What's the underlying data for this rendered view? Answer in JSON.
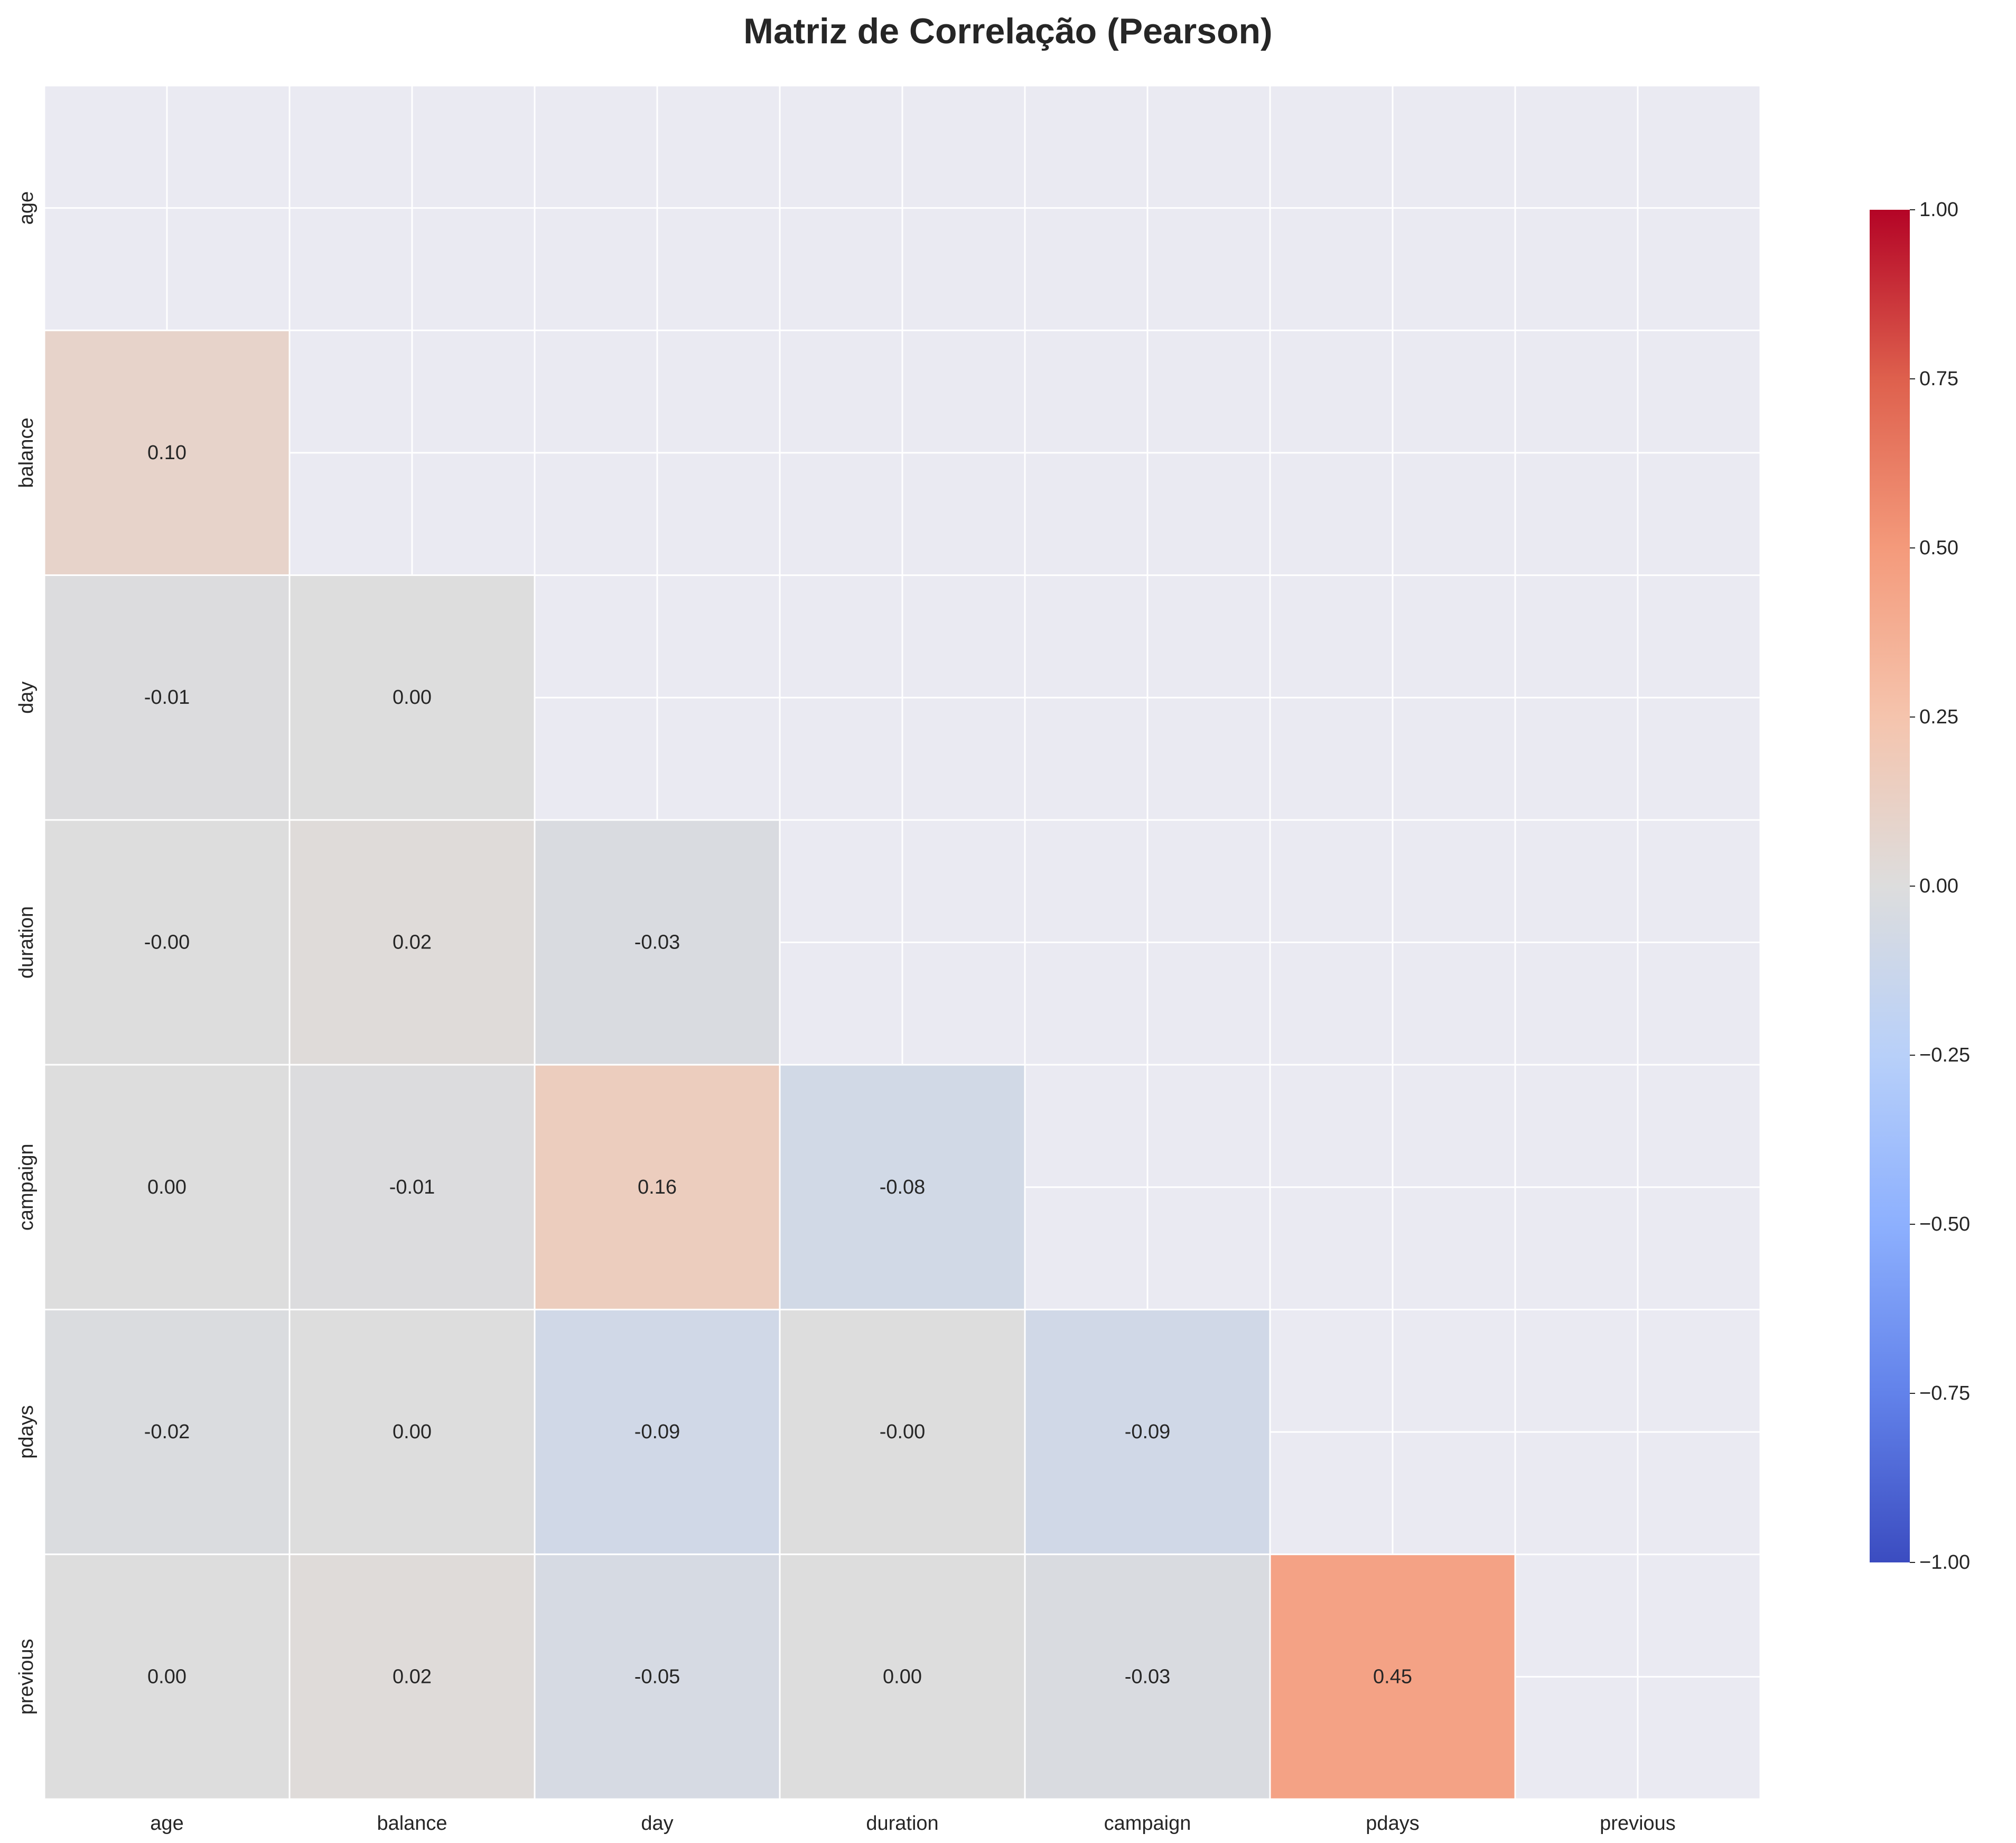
{
  "chart_data": {
    "type": "heatmap",
    "title": "Matriz de Correlação (Pearson)",
    "variables": [
      "age",
      "balance",
      "day",
      "duration",
      "campaign",
      "pdays",
      "previous"
    ],
    "masked": "upper triangle including diagonal",
    "matrix": [
      [
        null,
        null,
        null,
        null,
        null,
        null,
        null
      ],
      [
        0.1,
        null,
        null,
        null,
        null,
        null,
        null
      ],
      [
        -0.01,
        0.0,
        null,
        null,
        null,
        null,
        null
      ],
      [
        -0.0,
        0.02,
        -0.03,
        null,
        null,
        null,
        null
      ],
      [
        0.0,
        -0.01,
        0.16,
        -0.08,
        null,
        null,
        null
      ],
      [
        -0.02,
        0.0,
        -0.09,
        -0.0,
        -0.09,
        null,
        null
      ],
      [
        0.0,
        0.02,
        -0.05,
        0.0,
        -0.03,
        0.45,
        null
      ]
    ],
    "cell_labels": [
      [
        "",
        "",
        "",
        "",
        "",
        "",
        ""
      ],
      [
        "0.10",
        "",
        "",
        "",
        "",
        "",
        ""
      ],
      [
        "-0.01",
        "0.00",
        "",
        "",
        "",
        "",
        ""
      ],
      [
        "-0.00",
        "0.02",
        "-0.03",
        "",
        "",
        "",
        ""
      ],
      [
        "0.00",
        "-0.01",
        "0.16",
        "-0.08",
        "",
        "",
        ""
      ],
      [
        "-0.02",
        "0.00",
        "-0.09",
        "-0.00",
        "-0.09",
        "",
        ""
      ],
      [
        "0.00",
        "0.02",
        "-0.05",
        "0.00",
        "-0.03",
        "0.45",
        ""
      ]
    ],
    "colormap": "coolwarm",
    "vmin": -1,
    "vmax": 1,
    "colorbar_ticks": [
      1.0,
      0.75,
      0.5,
      0.25,
      0.0,
      -0.25,
      -0.5,
      -0.75,
      -1.0
    ],
    "colorbar_tick_labels": [
      "1.00",
      "0.75",
      "0.50",
      "0.25",
      "0.00",
      "−0.25",
      "−0.50",
      "−0.75",
      "−1.00"
    ],
    "grid": true,
    "colors": {
      "background": "#eaeaf2",
      "grid": "#ffffff",
      "text": "#262626"
    }
  }
}
